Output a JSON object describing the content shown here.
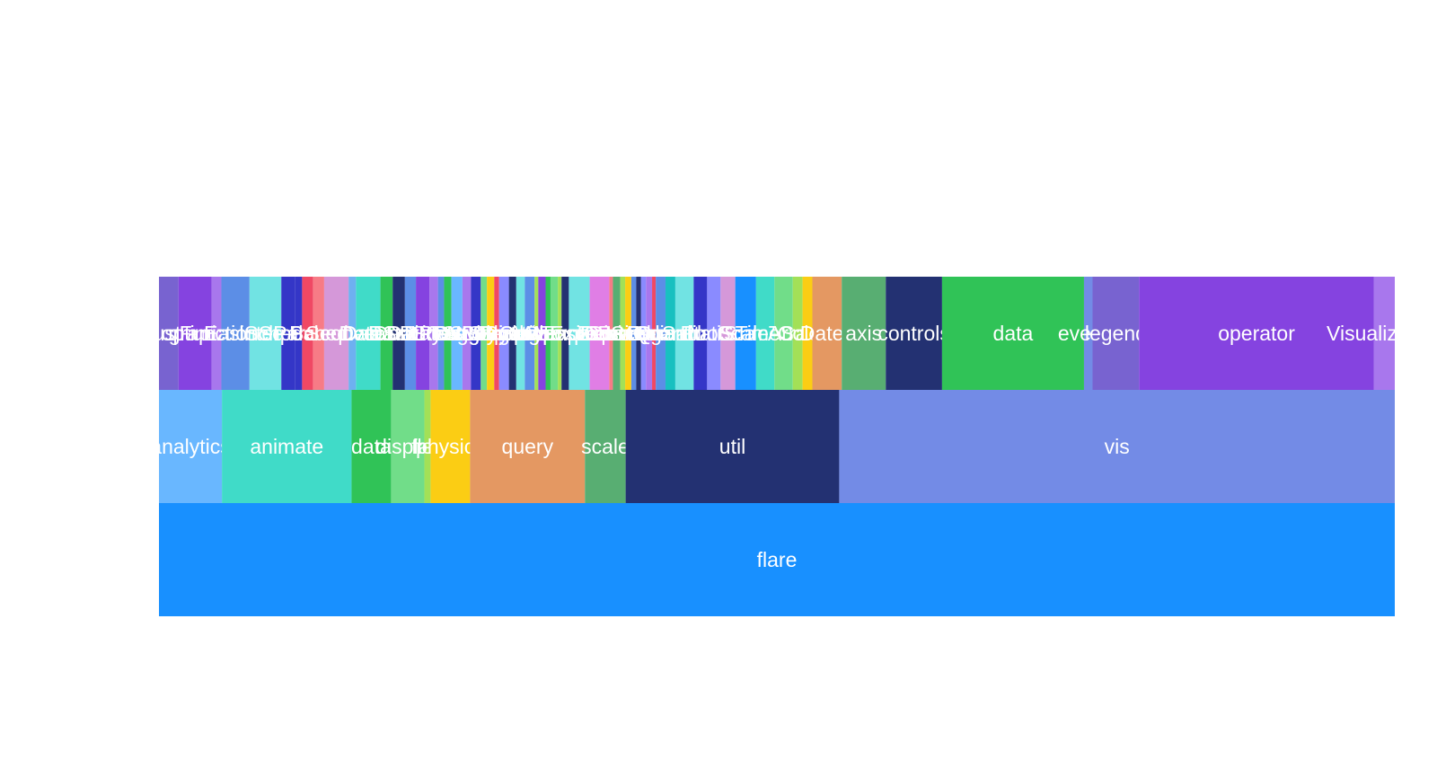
{
  "chart_data": {
    "type": "icicle",
    "title": "",
    "orientation": "bottom-up",
    "levels": [
      [
        {
          "label": "flare",
          "value": 100,
          "color": "#1890ff"
        }
      ],
      [
        {
          "label": "analytics",
          "value": 5.1,
          "color": "#69b7ff"
        },
        {
          "label": "animate",
          "value": 10.5,
          "color": "#40dbc8"
        },
        {
          "label": "data",
          "value": 3.2,
          "color": "#30c357"
        },
        {
          "label": "display",
          "value": 2.7,
          "color": "#71dd89"
        },
        {
          "label": "flex",
          "value": 0.5,
          "color": "#a3e057"
        },
        {
          "label": "physics",
          "value": 3.2,
          "color": "#fbcd14"
        },
        {
          "label": "query",
          "value": 9.3,
          "color": "#e49862"
        },
        {
          "label": "scale",
          "value": 3.3,
          "color": "#58ae72"
        },
        {
          "label": "util",
          "value": 17.3,
          "color": "#233172"
        },
        {
          "label": "vis",
          "value": 45.0,
          "color": "#738be6"
        }
      ],
      [
        {
          "label": "cluster",
          "value": 1.6,
          "color": "#7863d0"
        },
        {
          "label": "graph",
          "value": 2.7,
          "color": "#8543e0"
        },
        {
          "label": "optimization",
          "value": 0.8,
          "color": "#a877ed"
        },
        {
          "label": "Easing",
          "value": 2.3,
          "color": "#5c8ee6"
        },
        {
          "label": "FunctionSequence",
          "value": 2.6,
          "color": "#71e3e3"
        },
        {
          "label": "interpolate",
          "value": 1.1,
          "color": "#3436c7"
        },
        {
          "label": "ISchedulable",
          "value": 0.6,
          "color": "#3436c7"
        },
        {
          "label": "Parallel",
          "value": 0.9,
          "color": "#f04864"
        },
        {
          "label": "Pause",
          "value": 0.9,
          "color": "#f77b86"
        },
        {
          "label": "Scheduler",
          "value": 2.0,
          "color": "#d598d9"
        },
        {
          "label": "Sequence",
          "value": 0.6,
          "color": "#6eb0f0"
        },
        {
          "label": "converters",
          "value": 2.0,
          "color": "#40dbc8"
        },
        {
          "label": "DataField",
          "value": 1.0,
          "color": "#30c357"
        },
        {
          "label": "DataSchema",
          "value": 1.0,
          "color": "#233172"
        },
        {
          "label": "DataSet",
          "value": 0.9,
          "color": "#5c8ee6"
        },
        {
          "label": "DataSource",
          "value": 1.1,
          "color": "#8543e0"
        },
        {
          "label": "DataTable",
          "value": 0.7,
          "color": "#a877ed"
        },
        {
          "label": "DataUtil",
          "value": 0.5,
          "color": "#5c8ee6"
        },
        {
          "label": "DirtySprite",
          "value": 0.6,
          "color": "#30c357"
        },
        {
          "label": "LineSprite",
          "value": 0.9,
          "color": "#69b7ff"
        },
        {
          "label": "RectSprite",
          "value": 0.7,
          "color": "#a877ed"
        },
        {
          "label": "TextSprite",
          "value": 0.8,
          "color": "#3436c7"
        },
        {
          "label": "DragForce",
          "value": 0.5,
          "color": "#71dd89"
        },
        {
          "label": "GravityForce",
          "value": 0.6,
          "color": "#fbcd14"
        },
        {
          "label": "IForce",
          "value": 0.4,
          "color": "#f04864"
        },
        {
          "label": "NBodyForce",
          "value": 0.8,
          "color": "#8a8bff"
        },
        {
          "label": "Particle",
          "value": 0.6,
          "color": "#233172"
        },
        {
          "label": "Simulation",
          "value": 0.7,
          "color": "#71e3e3"
        },
        {
          "label": "Spring",
          "value": 0.8,
          "color": "#5c8ee6"
        },
        {
          "label": "SpringForce",
          "value": 0.3,
          "color": "#a3e057"
        },
        {
          "label": "AggregateExpression",
          "value": 0.6,
          "color": "#8543e0"
        },
        {
          "label": "And",
          "value": 0.4,
          "color": "#30c357"
        },
        {
          "label": "Arithmetic",
          "value": 0.6,
          "color": "#71dd89"
        },
        {
          "label": "Average",
          "value": 0.3,
          "color": "#a3e057"
        },
        {
          "label": "BinaryExpression",
          "value": 0.6,
          "color": "#233172"
        },
        {
          "label": "Comparison",
          "value": 1.7,
          "color": "#71e3e3"
        },
        {
          "label": "CompositeExpression",
          "value": 1.6,
          "color": "#e07ee5"
        },
        {
          "label": "Count",
          "value": 0.3,
          "color": "#f77b86"
        },
        {
          "label": "DateUtil",
          "value": 0.6,
          "color": "#58ae72"
        },
        {
          "label": "Distinct",
          "value": 0.4,
          "color": "#a3e057"
        },
        {
          "label": "Expression",
          "value": 0.5,
          "color": "#fbcd14"
        },
        {
          "label": "ExpressionIterator",
          "value": 0.4,
          "color": "#5c8ee6"
        },
        {
          "label": "Fn",
          "value": 0.4,
          "color": "#233172"
        },
        {
          "label": "If",
          "value": 0.4,
          "color": "#8a8bff"
        },
        {
          "label": "IsA",
          "value": 0.5,
          "color": "#a877ed"
        },
        {
          "label": "IScaleMap",
          "value": 0.3,
          "color": "#f04864"
        },
        {
          "label": "LinearScale",
          "value": 0.8,
          "color": "#5c8ee6"
        },
        {
          "label": "LogScale",
          "value": 0.8,
          "color": "#18c0c0"
        },
        {
          "label": "OrdinalScale",
          "value": 1.5,
          "color": "#71e3e3"
        },
        {
          "label": "QuantileScale",
          "value": 1.1,
          "color": "#3436c7"
        },
        {
          "label": "QuantitativeScale",
          "value": 1.1,
          "color": "#8a8bff"
        },
        {
          "label": "RootScale",
          "value": 1.2,
          "color": "#d598d9"
        },
        {
          "label": "Scale",
          "value": 1.7,
          "color": "#1890ff"
        },
        {
          "label": "ScaleType",
          "value": 1.5,
          "color": "#40dbc8"
        },
        {
          "label": "TimeScale",
          "value": 1.5,
          "color": "#71dd89"
        },
        {
          "label": "Arrays",
          "value": 0.8,
          "color": "#a3e057"
        },
        {
          "label": "Colors",
          "value": 0.8,
          "color": "#fbcd14"
        },
        {
          "label": "Dates",
          "value": 2.4,
          "color": "#e49862"
        },
        {
          "label": "axis",
          "value": 3.6,
          "color": "#58ae72"
        },
        {
          "label": "controls",
          "value": 4.6,
          "color": "#233172"
        },
        {
          "label": "data",
          "value": 11.6,
          "color": "#30c357"
        },
        {
          "label": "events",
          "value": 0.7,
          "color": "#738be6"
        },
        {
          "label": "legend",
          "value": 3.8,
          "color": "#7863d0"
        },
        {
          "label": "operator",
          "value": 19.2,
          "color": "#8543e0"
        },
        {
          "label": "Visualization",
          "value": 1.7,
          "color": "#a877ed"
        }
      ]
    ]
  }
}
